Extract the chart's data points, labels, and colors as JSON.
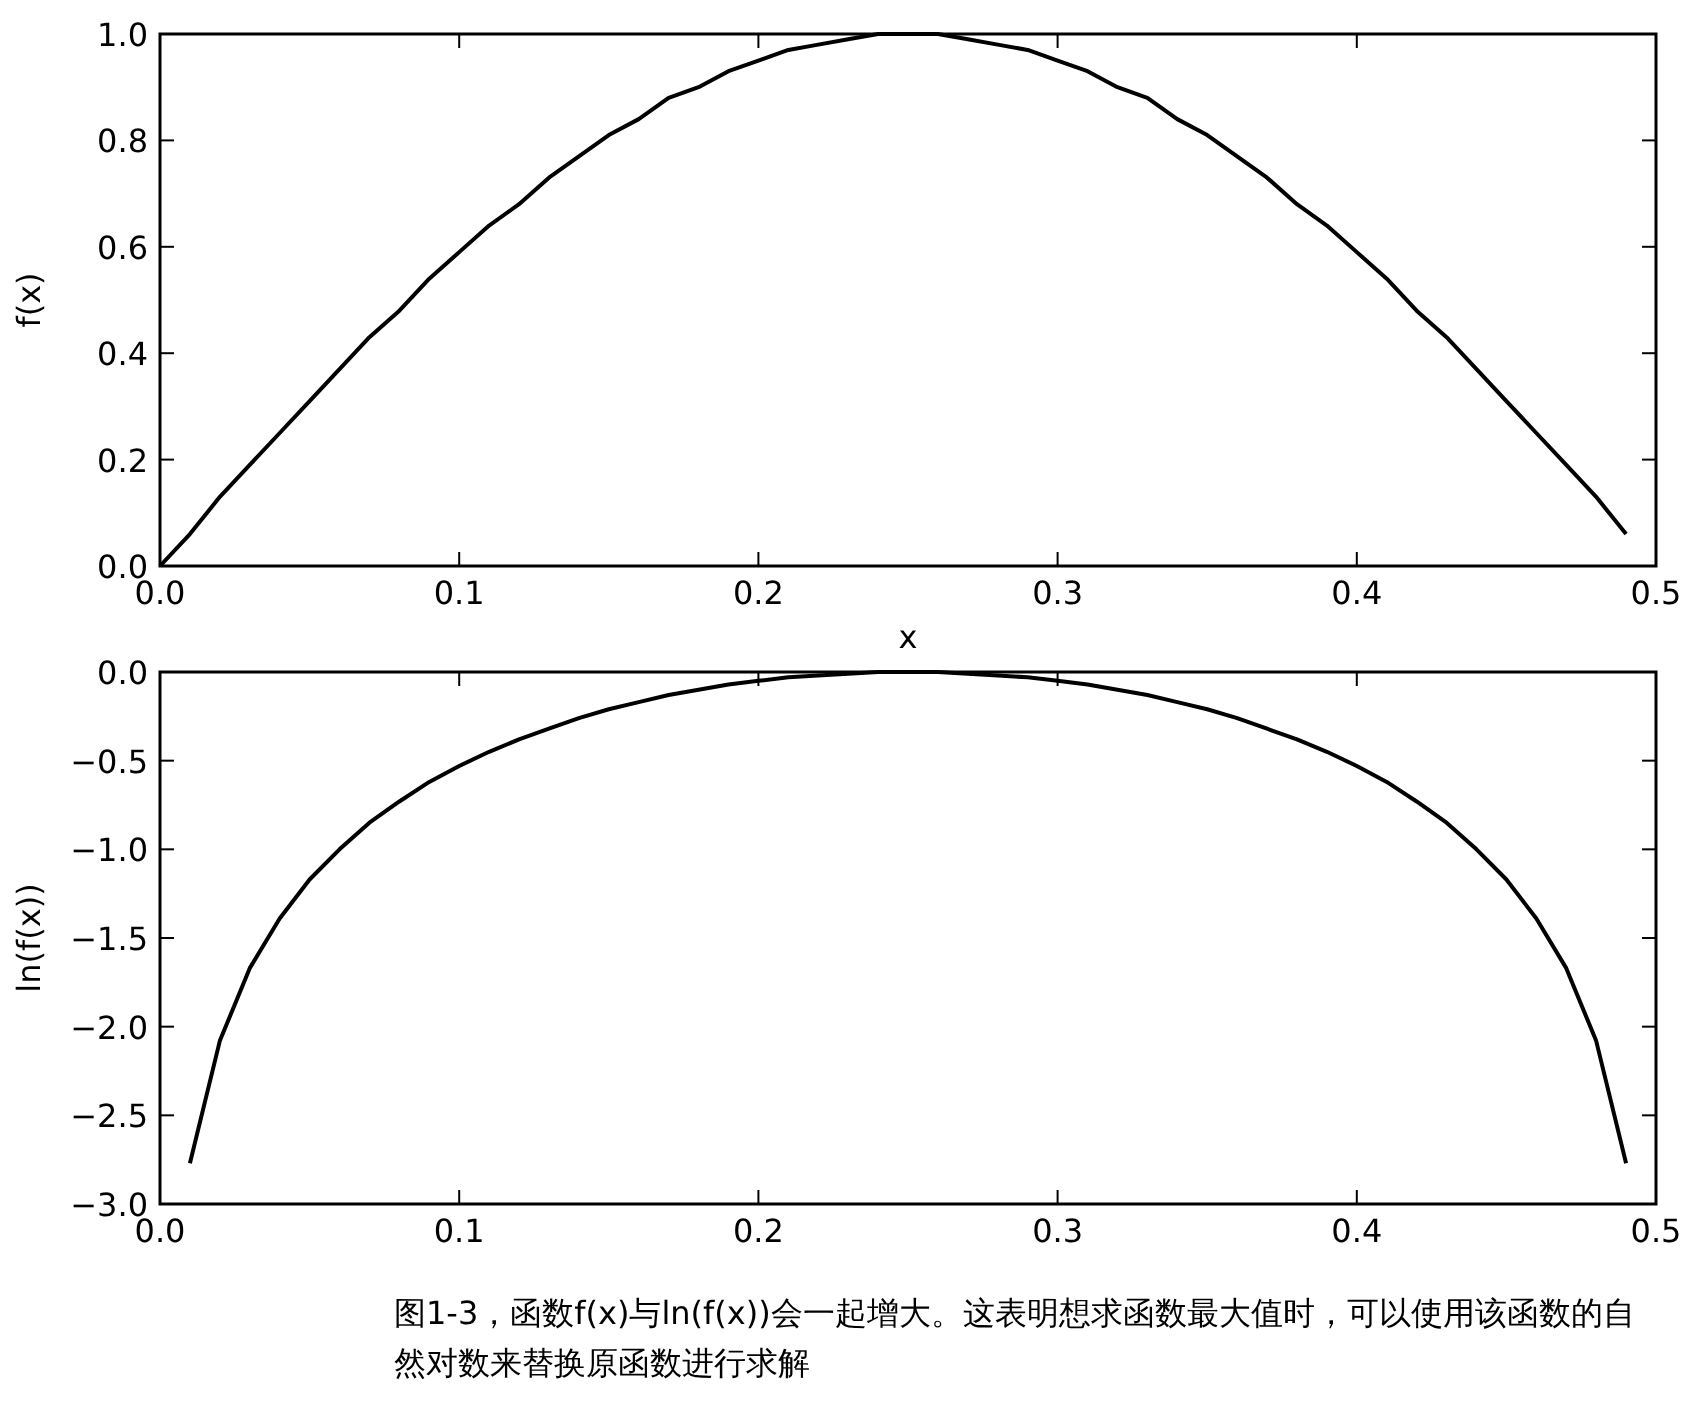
{
  "chart_data": [
    {
      "type": "line",
      "xlabel": "x",
      "ylabel": "f(x)",
      "grid": false,
      "marker": "none",
      "line_style": "solid",
      "x": [
        0,
        0.01,
        0.02,
        0.03,
        0.04,
        0.05,
        0.06,
        0.07,
        0.08,
        0.09,
        0.1,
        0.11,
        0.12,
        0.13,
        0.14,
        0.15,
        0.16,
        0.17,
        0.18,
        0.19,
        0.2,
        0.21,
        0.22,
        0.23,
        0.24,
        0.25,
        0.26,
        0.27,
        0.28,
        0.29,
        0.3,
        0.31,
        0.32,
        0.33,
        0.34,
        0.35,
        0.36,
        0.37,
        0.38,
        0.39,
        0.4,
        0.41,
        0.42,
        0.43,
        0.44,
        0.45,
        0.46,
        0.47,
        0.48,
        0.49
      ],
      "series": [
        {
          "color": "#000000",
          "values": [
            0,
            0.06,
            0.13,
            0.19,
            0.25,
            0.31,
            0.37,
            0.43,
            0.48,
            0.54,
            0.59,
            0.64,
            0.68,
            0.73,
            0.77,
            0.81,
            0.84,
            0.88,
            0.9,
            0.93,
            0.95,
            0.97,
            0.98,
            0.99,
            1.0,
            1.0,
            1.0,
            0.99,
            0.98,
            0.97,
            0.95,
            0.93,
            0.9,
            0.88,
            0.84,
            0.81,
            0.77,
            0.73,
            0.68,
            0.64,
            0.59,
            0.54,
            0.48,
            0.43,
            0.37,
            0.31,
            0.25,
            0.19,
            0.13,
            0.06
          ]
        }
      ],
      "xlim": [
        0,
        0.5
      ],
      "xticks": [
        {
          "value": 0,
          "label": "0.0"
        },
        0.1,
        0.2,
        0.3,
        0.4,
        0.5
      ],
      "ylim": [
        0,
        1
      ],
      "yticks": [
        {
          "value": 0,
          "label": "0.0"
        },
        0.2,
        0.4,
        0.6,
        0.8,
        {
          "value": 1,
          "label": "1.0"
        }
      ]
    },
    {
      "type": "line",
      "ylabel": "ln(f(x))",
      "grid": false,
      "marker": "none",
      "line_style": "solid",
      "x": [
        0.01,
        0.02,
        0.03,
        0.04,
        0.05,
        0.06,
        0.07,
        0.08,
        0.09,
        0.1,
        0.11,
        0.12,
        0.13,
        0.14,
        0.15,
        0.16,
        0.17,
        0.18,
        0.19,
        0.2,
        0.21,
        0.22,
        0.23,
        0.24,
        0.25,
        0.26,
        0.27,
        0.28,
        0.29,
        0.3,
        0.31,
        0.32,
        0.33,
        0.34,
        0.35,
        0.36,
        0.37,
        0.38,
        0.39,
        0.4,
        0.41,
        0.42,
        0.43,
        0.44,
        0.45,
        0.46,
        0.47,
        0.48,
        0.49
      ],
      "series": [
        {
          "color": "#000000",
          "values": [
            -2.77,
            -2.08,
            -1.67,
            -1.39,
            -1.17,
            -1.0,
            -0.85,
            -0.73,
            -0.62,
            -0.53,
            -0.45,
            -0.38,
            -0.32,
            -0.26,
            -0.21,
            -0.17,
            -0.13,
            -0.1,
            -0.07,
            -0.05,
            -0.03,
            -0.02,
            -0.01,
            0,
            0,
            0,
            -0.01,
            -0.02,
            -0.03,
            -0.05,
            -0.07,
            -0.1,
            -0.13,
            -0.17,
            -0.21,
            -0.26,
            -0.32,
            -0.38,
            -0.45,
            -0.53,
            -0.62,
            -0.73,
            -0.85,
            -1.0,
            -1.17,
            -1.39,
            -1.67,
            -2.08,
            -2.77
          ]
        }
      ],
      "xlim": [
        0,
        0.5
      ],
      "xticks": [
        {
          "value": 0,
          "label": "0.0"
        },
        0.1,
        0.2,
        0.3,
        0.4,
        0.5
      ],
      "ylim": [
        -3,
        0
      ],
      "yticks": [
        {
          "value": -3,
          "label": "−3.0"
        },
        {
          "value": -2.5,
          "label": "−2.5"
        },
        {
          "value": -2,
          "label": "−2.0"
        },
        {
          "value": -1.5,
          "label": "−1.5"
        },
        {
          "value": -1,
          "label": "−1.0"
        },
        {
          "value": -0.5,
          "label": "−0.5"
        },
        {
          "value": 0,
          "label": "0.0"
        }
      ],
      "annotations": [
        "图1-3，函数f(x)与ln(f(x))会一起增大。这表明想求函数最大值时，可以使用该函数的自然对数来替换原函数进行求解"
      ]
    }
  ]
}
